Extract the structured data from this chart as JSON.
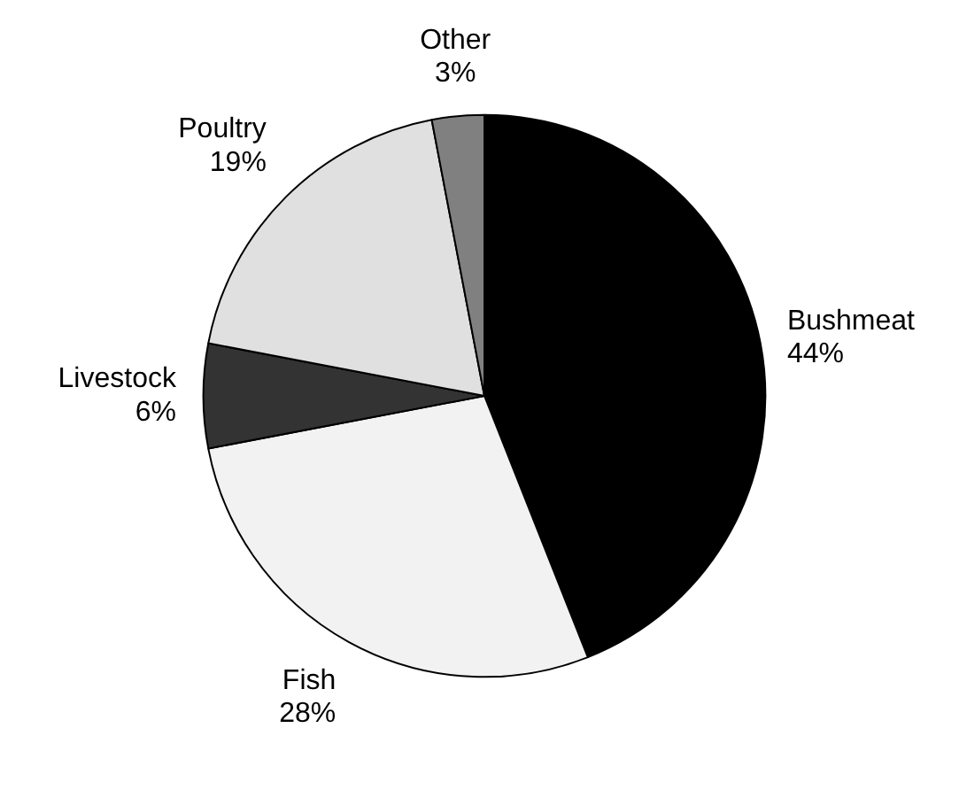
{
  "chart_data": {
    "type": "pie",
    "categories": [
      "Bushmeat",
      "Fish",
      "Livestock",
      "Poultry",
      "Other"
    ],
    "values": [
      44,
      28,
      6,
      19,
      3
    ],
    "colors": [
      "#000000",
      "#f2f2f2",
      "#333333",
      "#e0e0e0",
      "#808080"
    ],
    "value_labels": [
      "44%",
      "28%",
      "6%",
      "19%",
      "3%"
    ]
  }
}
